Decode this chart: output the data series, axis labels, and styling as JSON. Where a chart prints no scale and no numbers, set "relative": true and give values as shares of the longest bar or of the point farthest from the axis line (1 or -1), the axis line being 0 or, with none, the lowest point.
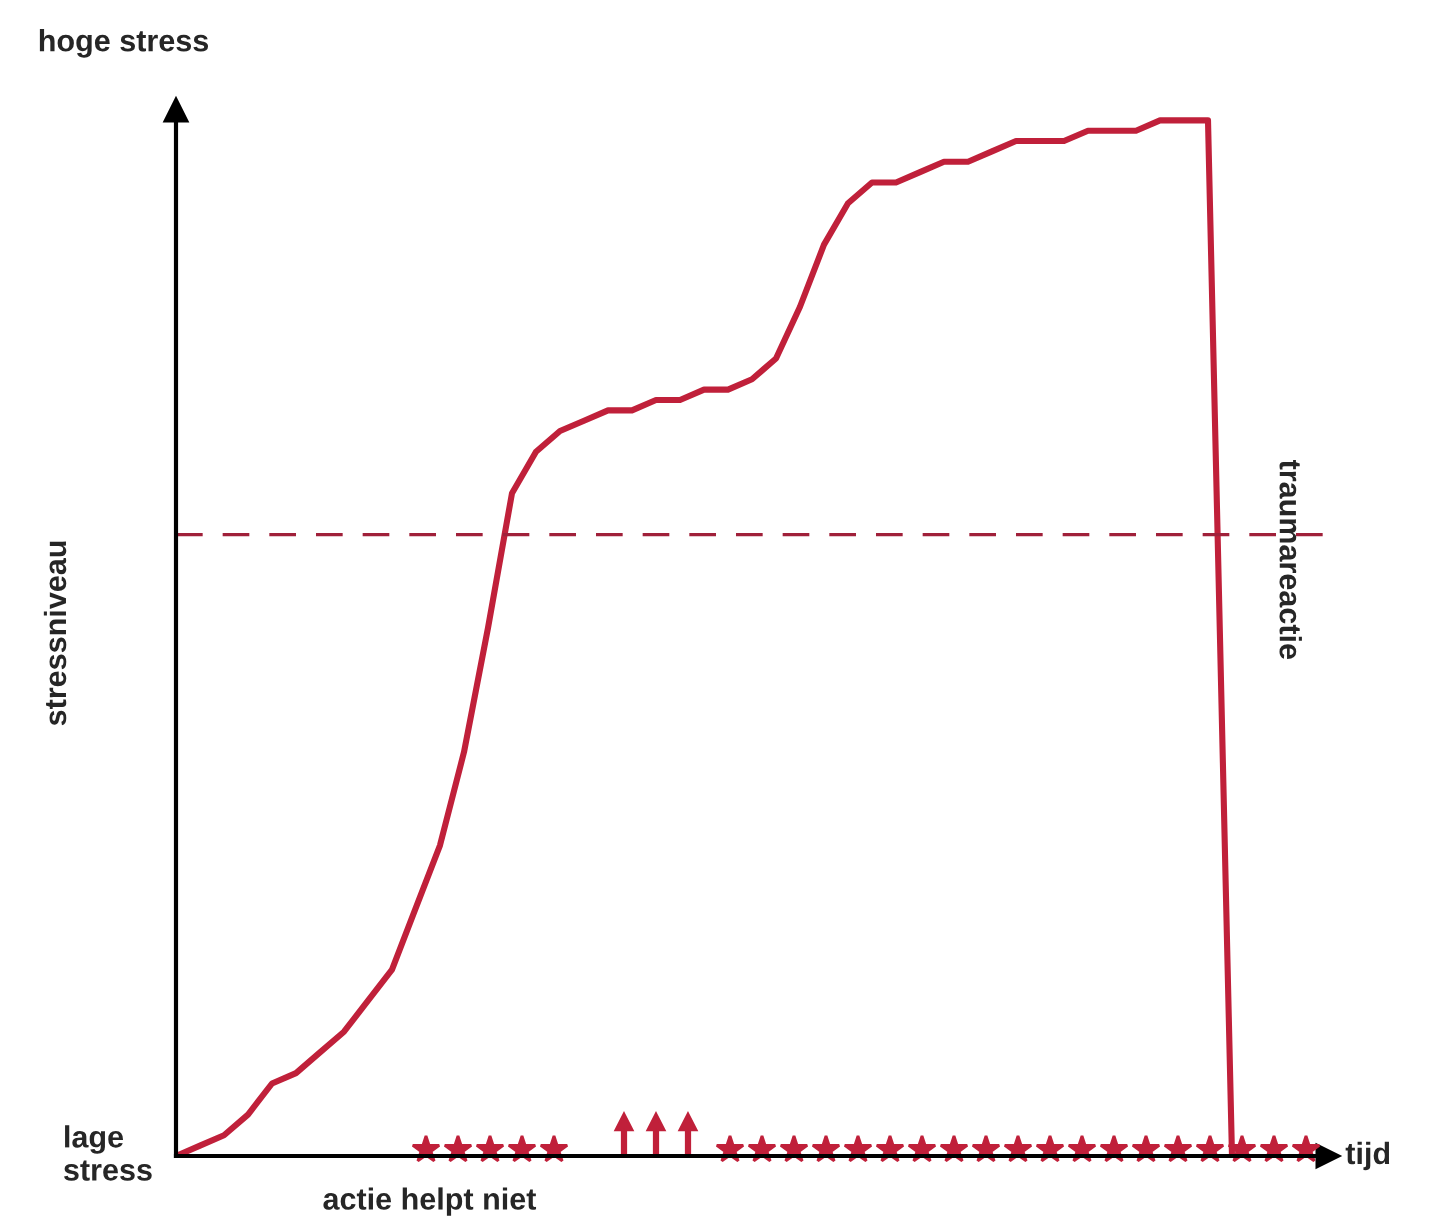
{
  "chart_data": {
    "type": "line",
    "relative": true,
    "ylabel": "stressniveau",
    "xlabel": "tijd",
    "categories": [
      null,
      null,
      null,
      null,
      null,
      null,
      null,
      null,
      null,
      null,
      null,
      null,
      null,
      null,
      null,
      null,
      null,
      null,
      null,
      null,
      null,
      null,
      null,
      null,
      null,
      null,
      null,
      null,
      null,
      null,
      null,
      null,
      null,
      null,
      null,
      null,
      null,
      null,
      null,
      null,
      null,
      null,
      null,
      null,
      null,
      null,
      null,
      null,
      null
    ],
    "series": [
      {
        "color": "#c0203a",
        "values": [
          0,
          0.01,
          0.02,
          0.04,
          0.07,
          0.08,
          0.1,
          0.12,
          0.15,
          0.18,
          0.24,
          0.3,
          0.39,
          0.51,
          0.64,
          0.68,
          0.7,
          0.71,
          0.72,
          0.72,
          0.73,
          0.73,
          0.74,
          0.74,
          0.75,
          0.77,
          0.82,
          0.88,
          0.92,
          0.94,
          0.94,
          0.95,
          0.96,
          0.96,
          0.97,
          0.98,
          0.98,
          0.98,
          0.99,
          0.99,
          0.99,
          1.0,
          1.0,
          1.0,
          0,
          null,
          null,
          null,
          null
        ]
      }
    ],
    "ref_lines": [
      {
        "axis": "y",
        "value": 0.6,
        "color": "#a0203a",
        "line_style": "dashed"
      }
    ],
    "annotations": [
      "hoge stress",
      "lage stress",
      "actie helpt niet",
      "traumareactie"
    ],
    "grid": false,
    "legend": false
  }
}
